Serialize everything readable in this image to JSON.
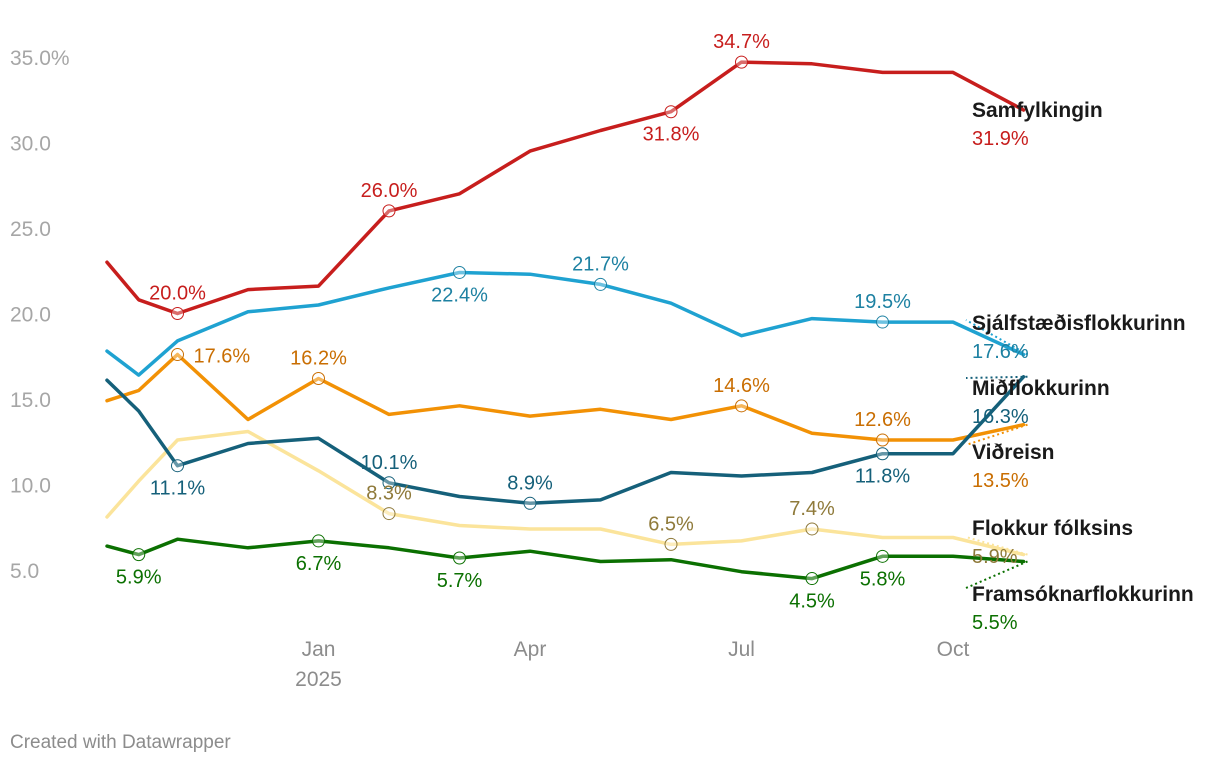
{
  "chart_data": {
    "type": "line",
    "title": "",
    "xlabel": "",
    "ylabel": "",
    "ylim": [
      3.5,
      36.5
    ],
    "y_ticks": [
      {
        "value": 35,
        "label": "35.0%"
      },
      {
        "value": 30,
        "label": "30.0"
      },
      {
        "value": 25,
        "label": "25.0"
      },
      {
        "value": 20,
        "label": "20.0"
      },
      {
        "value": 15,
        "label": "15.0"
      },
      {
        "value": 10,
        "label": "10.0"
      },
      {
        "value": 5,
        "label": "5.0"
      }
    ],
    "x_ticks": [
      {
        "month": 3,
        "label": "Jan",
        "sublabel": "2025"
      },
      {
        "month": 6,
        "label": "Apr",
        "sublabel": ""
      },
      {
        "month": 9,
        "label": "Jul",
        "sublabel": ""
      },
      {
        "month": 12,
        "label": "Oct",
        "sublabel": ""
      }
    ],
    "x": [
      0,
      0.45,
      1,
      2,
      3,
      4,
      5,
      6,
      7,
      8,
      9,
      10,
      11,
      12,
      13
    ],
    "series": [
      {
        "name": "Samfylkingin",
        "color": "#c71e1d",
        "label_color": "#c71e1d",
        "end_label": "31.9%",
        "values": [
          23.0,
          20.8,
          20.0,
          21.4,
          21.6,
          26.0,
          27.0,
          29.5,
          30.7,
          31.8,
          34.7,
          34.6,
          34.1,
          34.1,
          31.9
        ],
        "labels": [
          {
            "i": 2,
            "text": "20.0%",
            "pos": "above"
          },
          {
            "i": 5,
            "text": "26.0%",
            "pos": "above"
          },
          {
            "i": 9,
            "text": "31.8%",
            "pos": "below"
          },
          {
            "i": 10,
            "text": "34.7%",
            "pos": "above"
          }
        ]
      },
      {
        "name": "Sjálfstæðisflokkurinn",
        "color": "#1fa2d1",
        "label_color": "#1d81a2",
        "end_label": "17.6%",
        "values": [
          17.8,
          16.4,
          18.4,
          20.1,
          20.5,
          21.5,
          22.4,
          22.3,
          21.7,
          20.6,
          18.7,
          19.7,
          19.5,
          19.5,
          17.6
        ],
        "labels": [
          {
            "i": 6,
            "text": "22.4%",
            "pos": "below"
          },
          {
            "i": 8,
            "text": "21.7%",
            "pos": "above"
          },
          {
            "i": 12,
            "text": "19.5%",
            "pos": "above"
          }
        ]
      },
      {
        "name": "Miðflokkurinn",
        "color": "#15607a",
        "label_color": "#15607a",
        "end_label": "16.3%",
        "values": [
          16.1,
          14.3,
          11.1,
          12.4,
          12.7,
          10.1,
          9.3,
          8.9,
          9.1,
          10.7,
          10.5,
          10.7,
          11.8,
          11.8,
          16.3
        ],
        "labels": [
          {
            "i": 2,
            "text": "11.1%",
            "pos": "below"
          },
          {
            "i": 5,
            "text": "10.1%",
            "pos": "above"
          },
          {
            "i": 7,
            "text": "8.9%",
            "pos": "above"
          },
          {
            "i": 12,
            "text": "11.8%",
            "pos": "below"
          }
        ]
      },
      {
        "name": "Viðreisn",
        "color": "#f29105",
        "label_color": "#c96e02",
        "end_label": "13.5%",
        "values": [
          14.9,
          15.5,
          17.6,
          13.8,
          16.2,
          14.1,
          14.6,
          14.0,
          14.4,
          13.8,
          14.6,
          13.0,
          12.6,
          12.6,
          13.5
        ],
        "labels": [
          {
            "i": 2,
            "text": "17.6%",
            "pos": "right"
          },
          {
            "i": 4,
            "text": "16.2%",
            "pos": "above"
          },
          {
            "i": 10,
            "text": "14.6%",
            "pos": "above"
          },
          {
            "i": 12,
            "text": "12.6%",
            "pos": "above"
          }
        ]
      },
      {
        "name": "Flokkur fólksins",
        "color": "#fbe49b",
        "label_color": "#8f7a3a",
        "end_label": "5.9%",
        "values": [
          8.1,
          10.2,
          12.6,
          13.1,
          10.8,
          8.3,
          7.6,
          7.4,
          7.4,
          6.5,
          6.7,
          7.4,
          6.9,
          6.9,
          5.9
        ],
        "labels": [
          {
            "i": 5,
            "text": "8.3%",
            "pos": "above"
          },
          {
            "i": 9,
            "text": "6.5%",
            "pos": "above"
          },
          {
            "i": 11,
            "text": "7.4%",
            "pos": "above"
          }
        ]
      },
      {
        "name": "Framsóknarflokkurinn",
        "color": "#0b7001",
        "label_color": "#0b7001",
        "end_label": "5.5%",
        "values": [
          6.4,
          5.9,
          6.8,
          6.3,
          6.7,
          6.3,
          5.7,
          6.1,
          5.5,
          5.6,
          4.9,
          4.5,
          5.8,
          5.8,
          5.5
        ],
        "labels": [
          {
            "i": 1,
            "text": "5.9%",
            "pos": "below"
          },
          {
            "i": 4,
            "text": "6.7%",
            "pos": "below"
          },
          {
            "i": 6,
            "text": "5.7%",
            "pos": "below"
          },
          {
            "i": 11,
            "text": "4.5%",
            "pos": "below"
          },
          {
            "i": 12,
            "text": "5.8%",
            "pos": "below"
          }
        ]
      }
    ]
  },
  "footer": {
    "credit": "Created with Datawrapper"
  }
}
